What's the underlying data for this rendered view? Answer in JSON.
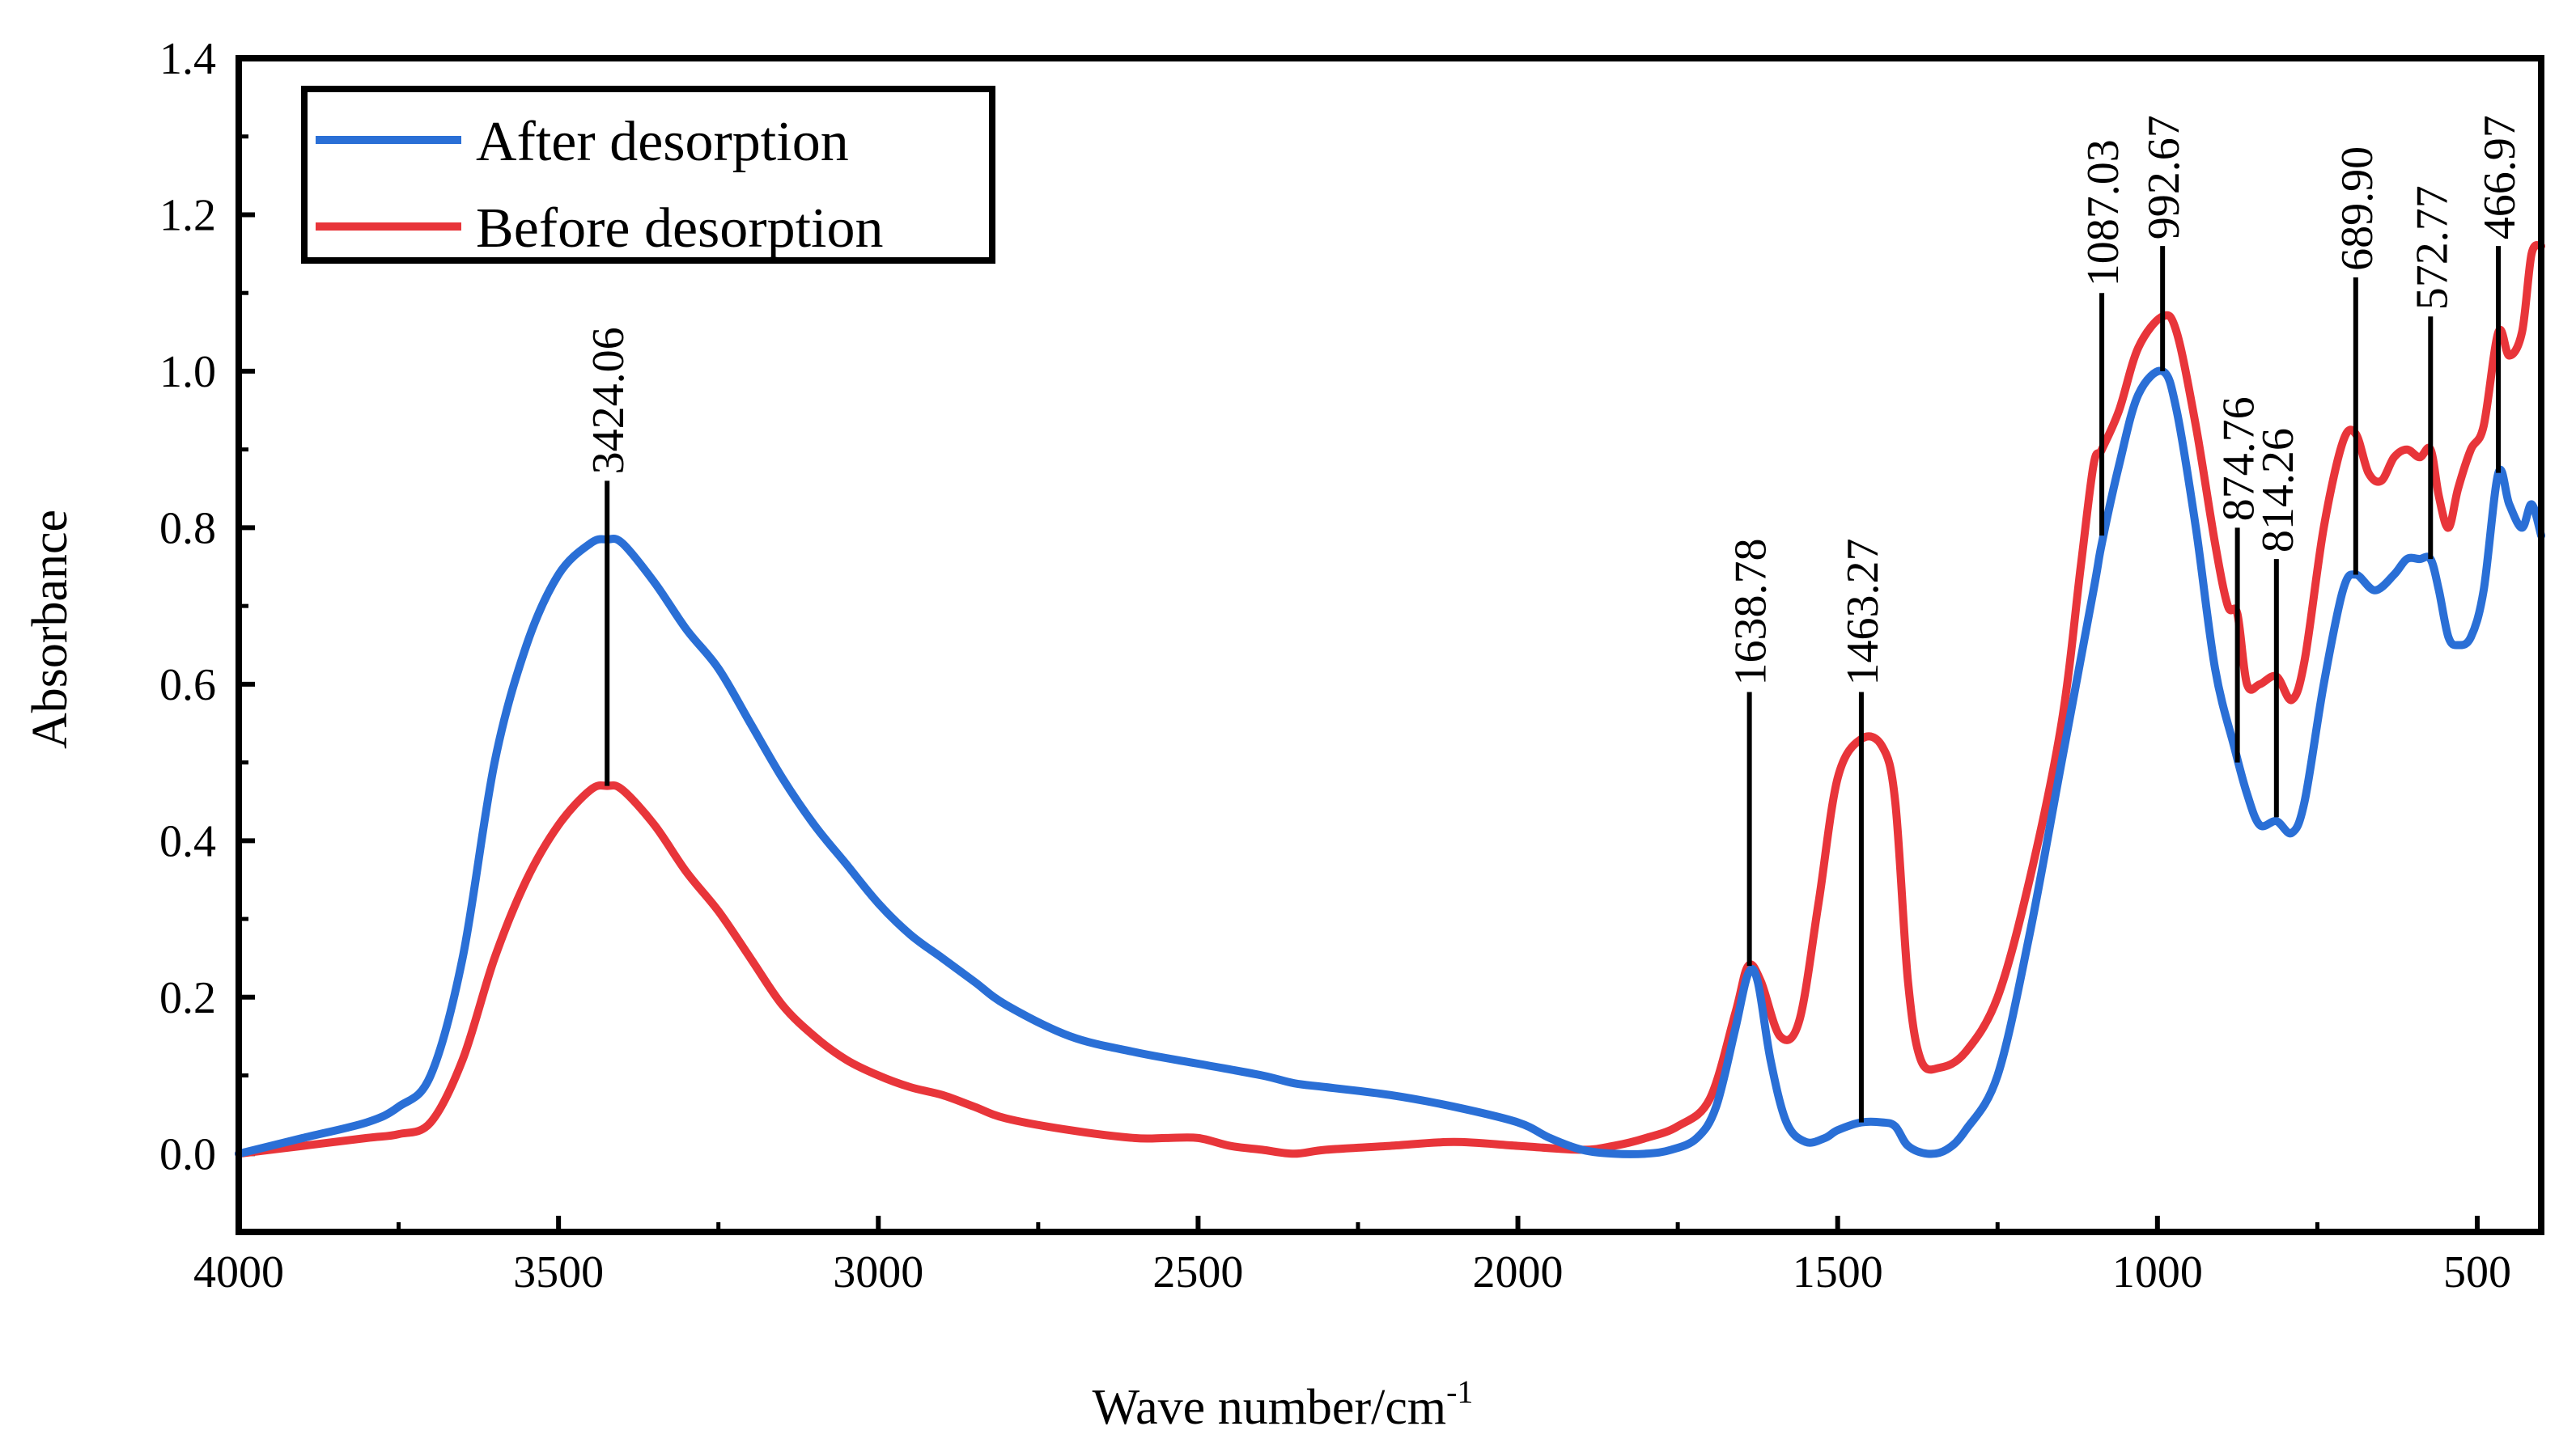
{
  "chart_data": {
    "type": "line",
    "xlabel": "Wave number/cm",
    "xlabel_sup": "-1",
    "ylabel": "Absorbance",
    "xlim": [
      4000,
      400
    ],
    "ylim": [
      -0.1,
      1.4
    ],
    "x_reversed": true,
    "x_ticks": [
      4000,
      3500,
      3000,
      2500,
      2000,
      1500,
      1000,
      500
    ],
    "x_tick_labels": [
      "4000",
      "3500",
      "3000",
      "2500",
      "2000",
      "1500",
      "1000",
      "500"
    ],
    "y_ticks": [
      0.0,
      0.2,
      0.4,
      0.6,
      0.8,
      1.0,
      1.2,
      1.4
    ],
    "y_tick_labels": [
      "0.0",
      "0.2",
      "0.4",
      "0.6",
      "0.8",
      "1.0",
      "1.2",
      "1.4"
    ],
    "legend_position": "top-left",
    "series": [
      {
        "name": "After desorption",
        "color": "#2a6fd6",
        "points": [
          [
            4000,
            0.0
          ],
          [
            3900,
            0.02
          ],
          [
            3800,
            0.04
          ],
          [
            3750,
            0.06
          ],
          [
            3700,
            0.1
          ],
          [
            3650,
            0.25
          ],
          [
            3600,
            0.5
          ],
          [
            3550,
            0.65
          ],
          [
            3500,
            0.74
          ],
          [
            3450,
            0.78
          ],
          [
            3424,
            0.785
          ],
          [
            3400,
            0.78
          ],
          [
            3350,
            0.73
          ],
          [
            3300,
            0.67
          ],
          [
            3250,
            0.62
          ],
          [
            3200,
            0.55
          ],
          [
            3150,
            0.48
          ],
          [
            3100,
            0.42
          ],
          [
            3050,
            0.37
          ],
          [
            3000,
            0.32
          ],
          [
            2950,
            0.28
          ],
          [
            2900,
            0.25
          ],
          [
            2850,
            0.22
          ],
          [
            2800,
            0.19
          ],
          [
            2700,
            0.15
          ],
          [
            2600,
            0.13
          ],
          [
            2500,
            0.115
          ],
          [
            2400,
            0.1
          ],
          [
            2350,
            0.09
          ],
          [
            2300,
            0.085
          ],
          [
            2200,
            0.075
          ],
          [
            2100,
            0.06
          ],
          [
            2000,
            0.04
          ],
          [
            1950,
            0.02
          ],
          [
            1900,
            0.005
          ],
          [
            1850,
            0.0
          ],
          [
            1800,
            0.0
          ],
          [
            1760,
            0.005
          ],
          [
            1720,
            0.02
          ],
          [
            1690,
            0.06
          ],
          [
            1660,
            0.16
          ],
          [
            1640,
            0.23
          ],
          [
            1625,
            0.22
          ],
          [
            1605,
            0.12
          ],
          [
            1580,
            0.04
          ],
          [
            1550,
            0.015
          ],
          [
            1520,
            0.02
          ],
          [
            1500,
            0.03
          ],
          [
            1463,
            0.04
          ],
          [
            1430,
            0.04
          ],
          [
            1410,
            0.035
          ],
          [
            1390,
            0.01
          ],
          [
            1360,
            0.0
          ],
          [
            1330,
            0.005
          ],
          [
            1300,
            0.03
          ],
          [
            1250,
            0.1
          ],
          [
            1200,
            0.28
          ],
          [
            1150,
            0.5
          ],
          [
            1100,
            0.72
          ],
          [
            1087,
            0.78
          ],
          [
            1060,
            0.88
          ],
          [
            1030,
            0.97
          ],
          [
            992,
            1.0
          ],
          [
            970,
            0.95
          ],
          [
            940,
            0.8
          ],
          [
            910,
            0.62
          ],
          [
            880,
            0.52
          ],
          [
            860,
            0.46
          ],
          [
            840,
            0.42
          ],
          [
            814,
            0.425
          ],
          [
            790,
            0.41
          ],
          [
            770,
            0.45
          ],
          [
            740,
            0.6
          ],
          [
            710,
            0.72
          ],
          [
            690,
            0.74
          ],
          [
            660,
            0.72
          ],
          [
            630,
            0.74
          ],
          [
            610,
            0.76
          ],
          [
            590,
            0.76
          ],
          [
            573,
            0.76
          ],
          [
            560,
            0.72
          ],
          [
            545,
            0.66
          ],
          [
            530,
            0.65
          ],
          [
            510,
            0.66
          ],
          [
            490,
            0.72
          ],
          [
            467,
            0.87
          ],
          [
            450,
            0.83
          ],
          [
            430,
            0.8
          ],
          [
            415,
            0.83
          ],
          [
            400,
            0.79
          ]
        ]
      },
      {
        "name": "Before desorption",
        "color": "#e8353a",
        "points": [
          [
            4000,
            0.0
          ],
          [
            3900,
            0.01
          ],
          [
            3800,
            0.02
          ],
          [
            3750,
            0.025
          ],
          [
            3700,
            0.04
          ],
          [
            3650,
            0.12
          ],
          [
            3600,
            0.25
          ],
          [
            3550,
            0.35
          ],
          [
            3500,
            0.42
          ],
          [
            3450,
            0.465
          ],
          [
            3424,
            0.47
          ],
          [
            3400,
            0.465
          ],
          [
            3350,
            0.42
          ],
          [
            3300,
            0.36
          ],
          [
            3250,
            0.31
          ],
          [
            3200,
            0.25
          ],
          [
            3150,
            0.19
          ],
          [
            3100,
            0.15
          ],
          [
            3050,
            0.12
          ],
          [
            3000,
            0.1
          ],
          [
            2950,
            0.085
          ],
          [
            2900,
            0.075
          ],
          [
            2850,
            0.06
          ],
          [
            2800,
            0.045
          ],
          [
            2700,
            0.03
          ],
          [
            2600,
            0.02
          ],
          [
            2550,
            0.02
          ],
          [
            2500,
            0.02
          ],
          [
            2450,
            0.01
          ],
          [
            2400,
            0.005
          ],
          [
            2350,
            0.0
          ],
          [
            2300,
            0.005
          ],
          [
            2200,
            0.01
          ],
          [
            2100,
            0.015
          ],
          [
            2000,
            0.01
          ],
          [
            1900,
            0.005
          ],
          [
            1850,
            0.01
          ],
          [
            1800,
            0.02
          ],
          [
            1750,
            0.035
          ],
          [
            1700,
            0.07
          ],
          [
            1660,
            0.18
          ],
          [
            1640,
            0.24
          ],
          [
            1620,
            0.22
          ],
          [
            1590,
            0.15
          ],
          [
            1560,
            0.17
          ],
          [
            1530,
            0.32
          ],
          [
            1500,
            0.48
          ],
          [
            1463,
            0.53
          ],
          [
            1430,
            0.52
          ],
          [
            1410,
            0.45
          ],
          [
            1390,
            0.22
          ],
          [
            1370,
            0.12
          ],
          [
            1340,
            0.11
          ],
          [
            1300,
            0.13
          ],
          [
            1250,
            0.2
          ],
          [
            1200,
            0.35
          ],
          [
            1150,
            0.55
          ],
          [
            1120,
            0.75
          ],
          [
            1100,
            0.88
          ],
          [
            1087,
            0.9
          ],
          [
            1060,
            0.95
          ],
          [
            1030,
            1.03
          ],
          [
            992,
            1.07
          ],
          [
            970,
            1.05
          ],
          [
            940,
            0.93
          ],
          [
            910,
            0.78
          ],
          [
            890,
            0.7
          ],
          [
            875,
            0.69
          ],
          [
            860,
            0.6
          ],
          [
            840,
            0.6
          ],
          [
            814,
            0.61
          ],
          [
            790,
            0.58
          ],
          [
            770,
            0.63
          ],
          [
            740,
            0.8
          ],
          [
            710,
            0.91
          ],
          [
            690,
            0.92
          ],
          [
            670,
            0.87
          ],
          [
            650,
            0.86
          ],
          [
            630,
            0.89
          ],
          [
            610,
            0.9
          ],
          [
            590,
            0.89
          ],
          [
            573,
            0.9
          ],
          [
            560,
            0.84
          ],
          [
            545,
            0.8
          ],
          [
            530,
            0.85
          ],
          [
            510,
            0.9
          ],
          [
            490,
            0.93
          ],
          [
            467,
            1.05
          ],
          [
            450,
            1.02
          ],
          [
            430,
            1.05
          ],
          [
            415,
            1.15
          ],
          [
            400,
            1.16
          ]
        ]
      }
    ],
    "annotations": [
      {
        "label": "3424.06",
        "x": 3424,
        "y_low": 0.47,
        "y_high": 0.86
      },
      {
        "label": "1638.78",
        "x": 1638,
        "y_low": 0.24,
        "y_high": 0.59
      },
      {
        "label": "1463.27",
        "x": 1463,
        "y_low": 0.04,
        "y_high": 0.59
      },
      {
        "label": "1087.03",
        "x": 1087,
        "y_low": 0.79,
        "y_high": 1.1
      },
      {
        "label": "992.67",
        "x": 992,
        "y_low": 1.0,
        "y_high": 1.16
      },
      {
        "label": "874.76",
        "x": 875,
        "y_low": 0.5,
        "y_high": 0.8
      },
      {
        "label": "814.26",
        "x": 814,
        "y_low": 0.43,
        "y_high": 0.76
      },
      {
        "label": "689.90",
        "x": 690,
        "y_low": 0.74,
        "y_high": 1.12
      },
      {
        "label": "572.77",
        "x": 573,
        "y_low": 0.76,
        "y_high": 1.07
      },
      {
        "label": "466.97",
        "x": 467,
        "y_low": 0.87,
        "y_high": 1.16
      }
    ]
  }
}
